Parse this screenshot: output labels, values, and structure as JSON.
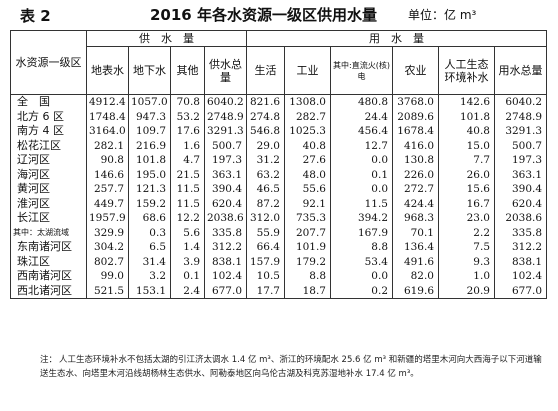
{
  "header": {
    "table_no": "表 2",
    "title": "2016 年各水资源一级区供用水量",
    "unit": "单位：亿 m³"
  },
  "columns": {
    "region": "水资源一级区",
    "supply_group": "供　水　量",
    "use_group": "用　水　量",
    "surface": "地表水",
    "ground": "地下水",
    "other": "其他",
    "supply_total": "供水总量",
    "living": "生活",
    "industry": "工业",
    "industry_sub": "其中:直流火(核)电",
    "agriculture": "农业",
    "eco": "人工生态环境补水",
    "use_total": "用水总量"
  },
  "rows": [
    {
      "name": "全　国",
      "surface": "4912.4",
      "ground": "1057.0",
      "other": "70.8",
      "supply_total": "6040.2",
      "living": "821.6",
      "industry": "1308.0",
      "industry_sub": "480.8",
      "agriculture": "3768.0",
      "eco": "142.6",
      "use_total": "6040.2"
    },
    {
      "name": "北方 6 区",
      "surface": "1748.4",
      "ground": "947.3",
      "other": "53.2",
      "supply_total": "2748.9",
      "living": "274.8",
      "industry": "282.7",
      "industry_sub": "24.4",
      "agriculture": "2089.6",
      "eco": "101.8",
      "use_total": "2748.9"
    },
    {
      "name": "南方 4 区",
      "surface": "3164.0",
      "ground": "109.7",
      "other": "17.6",
      "supply_total": "3291.3",
      "living": "546.8",
      "industry": "1025.3",
      "industry_sub": "456.4",
      "agriculture": "1678.4",
      "eco": "40.8",
      "use_total": "3291.3"
    },
    {
      "name": "松花江区",
      "surface": "282.1",
      "ground": "216.9",
      "other": "1.6",
      "supply_total": "500.7",
      "living": "29.0",
      "industry": "40.8",
      "industry_sub": "12.7",
      "agriculture": "416.0",
      "eco": "15.0",
      "use_total": "500.7"
    },
    {
      "name": "辽河区",
      "surface": "90.8",
      "ground": "101.8",
      "other": "4.7",
      "supply_total": "197.3",
      "living": "31.2",
      "industry": "27.6",
      "industry_sub": "0.0",
      "agriculture": "130.8",
      "eco": "7.7",
      "use_total": "197.3"
    },
    {
      "name": "海河区",
      "surface": "146.6",
      "ground": "195.0",
      "other": "21.5",
      "supply_total": "363.1",
      "living": "63.2",
      "industry": "48.0",
      "industry_sub": "0.1",
      "agriculture": "226.0",
      "eco": "26.0",
      "use_total": "363.1"
    },
    {
      "name": "黄河区",
      "surface": "257.7",
      "ground": "121.3",
      "other": "11.5",
      "supply_total": "390.4",
      "living": "46.5",
      "industry": "55.6",
      "industry_sub": "0.0",
      "agriculture": "272.7",
      "eco": "15.6",
      "use_total": "390.4"
    },
    {
      "name": "淮河区",
      "surface": "449.7",
      "ground": "159.2",
      "other": "11.5",
      "supply_total": "620.4",
      "living": "87.2",
      "industry": "92.1",
      "industry_sub": "11.5",
      "agriculture": "424.4",
      "eco": "16.7",
      "use_total": "620.4"
    },
    {
      "name": "长江区",
      "surface": "1957.9",
      "ground": "68.6",
      "other": "12.2",
      "supply_total": "2038.6",
      "living": "312.0",
      "industry": "735.3",
      "industry_sub": "394.2",
      "agriculture": "968.3",
      "eco": "23.0",
      "use_total": "2038.6"
    },
    {
      "name": "其中：太湖流域",
      "small": true,
      "surface": "329.9",
      "ground": "0.3",
      "other": "5.6",
      "supply_total": "335.8",
      "living": "55.9",
      "industry": "207.7",
      "industry_sub": "167.9",
      "agriculture": "70.1",
      "eco": "2.2",
      "use_total": "335.8"
    },
    {
      "name": "东南诸河区",
      "surface": "304.2",
      "ground": "6.5",
      "other": "1.4",
      "supply_total": "312.2",
      "living": "66.4",
      "industry": "101.9",
      "industry_sub": "8.8",
      "agriculture": "136.4",
      "eco": "7.5",
      "use_total": "312.2"
    },
    {
      "name": "珠江区",
      "surface": "802.7",
      "ground": "31.4",
      "other": "3.9",
      "supply_total": "838.1",
      "living": "157.9",
      "industry": "179.2",
      "industry_sub": "53.4",
      "agriculture": "491.6",
      "eco": "9.3",
      "use_total": "838.1"
    },
    {
      "name": "西南诸河区",
      "surface": "99.0",
      "ground": "3.2",
      "other": "0.1",
      "supply_total": "102.4",
      "living": "10.5",
      "industry": "8.8",
      "industry_sub": "0.0",
      "agriculture": "82.0",
      "eco": "1.0",
      "use_total": "102.4"
    },
    {
      "name": "西北诸河区",
      "surface": "521.5",
      "ground": "153.1",
      "other": "2.4",
      "supply_total": "677.0",
      "living": "17.7",
      "industry": "18.7",
      "industry_sub": "0.2",
      "agriculture": "619.6",
      "eco": "20.9",
      "use_total": "677.0"
    }
  ],
  "note": {
    "prefix": "注：",
    "text": "人工生态环境补水不包括太湖的引江济太调水 1.4 亿 m³、浙江的环境配水 25.6 亿 m³ 和新疆的塔里木河向大西海子以下河道输送生态水、向塔里木河沿线胡杨林生态供水、阿勒泰地区向乌伦古湖及科克苏湿地补水 17.4 亿 m³。"
  }
}
